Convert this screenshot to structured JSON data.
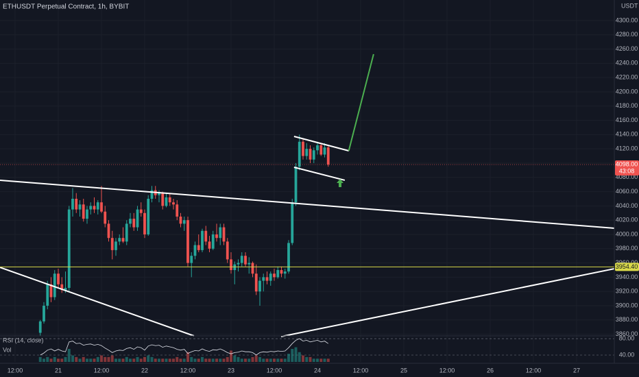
{
  "chart_data": {
    "type": "candlestick",
    "title": "ETHUSDT Perpetual Contract, 1h, BYBIT",
    "currency": "USDT",
    "up_color": "#26a69a",
    "down_color": "#ef5350",
    "grid": true,
    "x": [
      19,
      20,
      21,
      22,
      23,
      24,
      25,
      26,
      27,
      28,
      29,
      30,
      31,
      32,
      33,
      34,
      35,
      36,
      37,
      38,
      39,
      40,
      41,
      42,
      43,
      44,
      45,
      46,
      47,
      48,
      49,
      50,
      51,
      52,
      53,
      54,
      55,
      56,
      57,
      58,
      59,
      60,
      61,
      62,
      63,
      64,
      65,
      66,
      67,
      68,
      69,
      70,
      71,
      72,
      73,
      74,
      75,
      76,
      77,
      78,
      79,
      80,
      81,
      82,
      83,
      84,
      85,
      86,
      87,
      88,
      89,
      90,
      91,
      92,
      93,
      94,
      95,
      96,
      97,
      98,
      99
    ],
    "open": [
      3862,
      3878,
      3900,
      3930,
      3912,
      3945,
      3930,
      3922,
      3925,
      4035,
      4050,
      4035,
      4042,
      4022,
      4035,
      4040,
      4035,
      4045,
      4032,
      4015,
      3995,
      3978,
      3990,
      3995,
      3990,
      4015,
      4022,
      4010,
      4035,
      4030,
      4000,
      4050,
      4062,
      4055,
      4058,
      4040,
      4052,
      4045,
      4042,
      4025,
      4015,
      4020,
      3960,
      3970,
      3985,
      3978,
      4005,
      3990,
      3980,
      4000,
      3995,
      4010,
      3990,
      3965,
      3950,
      3958,
      3960,
      3970,
      3958,
      3960,
      3945,
      3920,
      3935,
      3940,
      3935,
      3945,
      3940,
      3950,
      3945,
      3948,
      3988,
      4045,
      4095,
      4130,
      4110,
      4120,
      4105,
      4118,
      4125,
      4112,
      4122
    ],
    "high": [
      3880,
      3905,
      3935,
      3940,
      3950,
      3952,
      3940,
      3948,
      4040,
      4065,
      4058,
      4048,
      4050,
      4040,
      4045,
      4052,
      4048,
      4068,
      4040,
      4020,
      4005,
      3995,
      4000,
      4010,
      4020,
      4030,
      4030,
      4040,
      4045,
      4035,
      4055,
      4068,
      4068,
      4062,
      4060,
      4058,
      4058,
      4050,
      4048,
      4030,
      4025,
      4025,
      3975,
      3990,
      4000,
      4008,
      4012,
      3998,
      4005,
      4015,
      4015,
      4015,
      3995,
      3975,
      3962,
      3965,
      3975,
      3975,
      3968,
      3962,
      3958,
      3940,
      3945,
      3948,
      3948,
      3952,
      3955,
      3955,
      3952,
      3992,
      4050,
      4100,
      4140,
      4135,
      4128,
      4125,
      4122,
      4130,
      4128,
      4128,
      4124
    ],
    "low": [
      3858,
      3875,
      3895,
      3905,
      3908,
      3925,
      3918,
      3918,
      3920,
      4025,
      4030,
      4025,
      4018,
      4015,
      4028,
      4030,
      4028,
      4030,
      4010,
      3990,
      3965,
      3970,
      3985,
      3988,
      3985,
      4010,
      4005,
      4005,
      4025,
      3995,
      3998,
      4045,
      4050,
      4045,
      4035,
      4038,
      4040,
      4035,
      4020,
      4010,
      4005,
      3955,
      3940,
      3965,
      3975,
      3975,
      3985,
      3975,
      3978,
      3990,
      3985,
      3985,
      3960,
      3945,
      3930,
      3948,
      3955,
      3955,
      3945,
      3940,
      3915,
      3900,
      3920,
      3930,
      3928,
      3935,
      3938,
      3940,
      3938,
      3945,
      3985,
      4040,
      4090,
      4105,
      4105,
      4100,
      4100,
      4112,
      4110,
      4108,
      4095
    ],
    "close": [
      3878,
      3900,
      3930,
      3912,
      3945,
      3930,
      3922,
      3925,
      4035,
      4050,
      4035,
      4042,
      4022,
      4035,
      4040,
      4035,
      4045,
      4032,
      4015,
      3995,
      3978,
      3990,
      3995,
      3990,
      4015,
      4022,
      4010,
      4035,
      4030,
      4000,
      4050,
      4062,
      4055,
      4058,
      4040,
      4052,
      4045,
      4042,
      4025,
      4015,
      4020,
      3960,
      3970,
      3985,
      3978,
      4005,
      3990,
      3980,
      4000,
      3995,
      4010,
      3990,
      3965,
      3950,
      3958,
      3960,
      3970,
      3958,
      3960,
      3945,
      3920,
      3935,
      3940,
      3935,
      3945,
      3940,
      3950,
      3945,
      3948,
      3988,
      4045,
      4095,
      4130,
      4110,
      4120,
      4105,
      4118,
      4125,
      4112,
      4122,
      4098
    ],
    "xlim": [
      7.81,
      178.48
    ],
    "xticks": [
      {
        "value": 12,
        "label": "12:00"
      },
      {
        "value": 24,
        "label": "21"
      },
      {
        "value": 36,
        "label": "12:00"
      },
      {
        "value": 48,
        "label": "22"
      },
      {
        "value": 60,
        "label": "12:00"
      },
      {
        "value": 72,
        "label": "23"
      },
      {
        "value": 84,
        "label": "12:00"
      },
      {
        "value": 96,
        "label": "24"
      },
      {
        "value": 108,
        "label": "12:00"
      },
      {
        "value": 120,
        "label": "25"
      },
      {
        "value": 132,
        "label": "12:00"
      },
      {
        "value": 144,
        "label": "26"
      },
      {
        "value": 156,
        "label": "12:00"
      },
      {
        "value": 168,
        "label": "27"
      },
      {
        "value": 180,
        "label": "12:00"
      }
    ],
    "ylim": [
      3857.7,
      4328.8
    ],
    "yticks": [
      {
        "value": 3860,
        "label": "3860.00"
      },
      {
        "value": 3880,
        "label": "3880.00"
      },
      {
        "value": 3900,
        "label": "3900.00"
      },
      {
        "value": 3920,
        "label": "3920.00"
      },
      {
        "value": 3940,
        "label": "3940.00"
      },
      {
        "value": 3960,
        "label": "3960.00"
      },
      {
        "value": 3980,
        "label": "3980.00"
      },
      {
        "value": 4000,
        "label": "4000.00"
      },
      {
        "value": 4020,
        "label": "4020.00"
      },
      {
        "value": 4040,
        "label": "4040.00"
      },
      {
        "value": 4060,
        "label": "4060.00"
      },
      {
        "value": 4080,
        "label": "4080.00"
      },
      {
        "value": 4100,
        "label": "4100.00"
      },
      {
        "value": 4120,
        "label": "4120.00"
      },
      {
        "value": 4140,
        "label": "4140.00"
      },
      {
        "value": 4160,
        "label": "4160.00"
      },
      {
        "value": 4180,
        "label": "4180.00"
      },
      {
        "value": 4200,
        "label": "4200.00"
      },
      {
        "value": 4220,
        "label": "4220.00"
      },
      {
        "value": 4240,
        "label": "4240.00"
      },
      {
        "value": 4260,
        "label": "4260.00"
      },
      {
        "value": 4280,
        "label": "4280.00"
      },
      {
        "value": 4300,
        "label": "4300.00"
      }
    ],
    "last_price": {
      "value": 4098,
      "label": "4098.00"
    },
    "countdown": "43:08",
    "hline": {
      "value": 3954.4,
      "label": "3954.40",
      "color": "#d9d94a"
    },
    "drawings": [
      {
        "color": "#ffffff",
        "x": [
          7.81,
          178.48
        ],
        "y": [
          4076,
          4008.7
        ]
      },
      {
        "color": "#ffffff",
        "x": [
          7.81,
          61.7
        ],
        "y": [
          3953.8,
          3857.7
        ]
      },
      {
        "color": "#ffffff",
        "x": [
          85.9,
          178.48
        ],
        "y": [
          3856.7,
          3951.9
        ]
      },
      {
        "color": "#ffffff",
        "x": [
          89.5,
          104.7
        ],
        "y": [
          4137.5,
          4117.3
        ]
      },
      {
        "color": "#ffffff",
        "x": [
          89.5,
          103.6
        ],
        "y": [
          4094.2,
          4076
        ]
      },
      {
        "color": "#4caf50",
        "x": [
          104.7,
          111.6
        ],
        "y": [
          4117.3,
          4252.9
        ]
      }
    ],
    "volume": {
      "name": "Vol",
      "ylim": [
        0,
        16
      ],
      "values": [
        3,
        2,
        3,
        2,
        3,
        2,
        2,
        3,
        8,
        4,
        3,
        2,
        3,
        2,
        2,
        2,
        3,
        4,
        3,
        3,
        4,
        2,
        2,
        2,
        3,
        2,
        2,
        3,
        2,
        3,
        4,
        3,
        2,
        2,
        2,
        2,
        2,
        2,
        3,
        2,
        2,
        6,
        3,
        2,
        2,
        3,
        2,
        2,
        2,
        2,
        2,
        2,
        3,
        7,
        4,
        3,
        2,
        2,
        2,
        3,
        4,
        3,
        2,
        2,
        2,
        2,
        2,
        2,
        2,
        5,
        8,
        9,
        6,
        4,
        3,
        3,
        2,
        2,
        2,
        2,
        2
      ]
    },
    "rsi": {
      "name": "RSI (14, close)",
      "color": "#e0e3eb",
      "ylim": [
        23.3,
        86.7
      ],
      "yticks": [
        {
          "value": 80,
          "label": "80.00"
        },
        {
          "value": 40,
          "label": "40.00"
        }
      ],
      "values": [
        40,
        45,
        52,
        55,
        50,
        54,
        50,
        48,
        72,
        74,
        68,
        69,
        64,
        66,
        67,
        64,
        66,
        63,
        57,
        52,
        46,
        50,
        52,
        51,
        56,
        58,
        54,
        60,
        58,
        52,
        62,
        65,
        63,
        64,
        59,
        62,
        60,
        58,
        54,
        52,
        54,
        44,
        48,
        51,
        50,
        55,
        51,
        49,
        53,
        52,
        55,
        51,
        46,
        43,
        46,
        47,
        50,
        48,
        48,
        46,
        40,
        46,
        48,
        47,
        49,
        48,
        50,
        49,
        50,
        58,
        68,
        76,
        80,
        74,
        76,
        72,
        74,
        76,
        72,
        74,
        68
      ]
    }
  }
}
